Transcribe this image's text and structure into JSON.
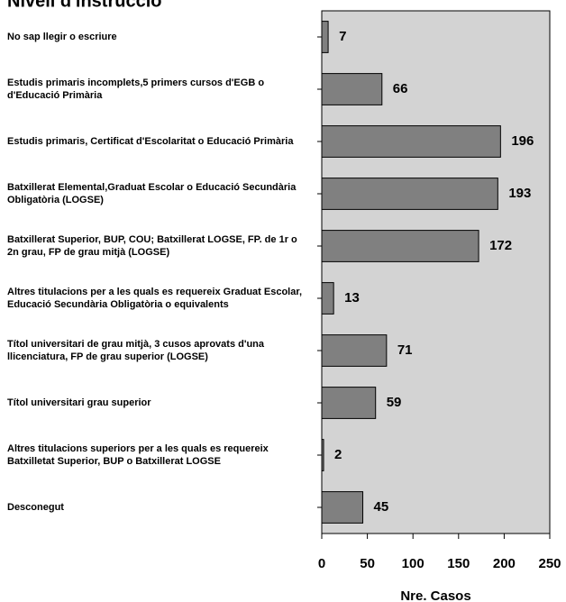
{
  "chart_data": {
    "type": "barh",
    "title": "Nivell d'instrucció",
    "categories": [
      "No sap llegir o escriure",
      "Estudis primaris incomplets,5 primers cursos d'EGB o d'Educació Primària",
      "Estudis primaris, Certificat d'Escolaritat o Educació Primària",
      "Batxillerat Elemental,Graduat Escolar o Educació Secundària Obligatòria (LOGSE)",
      "Batxillerat Superior, BUP, COU; Batxillerat LOGSE, FP. de 1r o 2n grau, FP de grau mitjà (LOGSE)",
      "Altres titulacions per a les quals es requereix Graduat Escolar, Educació Secundària Obligatòria o equivalents",
      "Títol universitari de grau mitjà, 3 cusos aprovats d'una llicenciatura,  FP de grau superior (LOGSE)",
      "Títol universitari grau superior",
      "Altres titulacions superiors per a les quals es requereix Batxilletat Superior, BUP o Batxillerat LOGSE",
      "Desconegut"
    ],
    "values": [
      7,
      66,
      196,
      193,
      172,
      13,
      71,
      59,
      2,
      45
    ],
    "color": "#808080",
    "background": "#d3d3d3",
    "xlabel": "Nre. Casos",
    "xlim": [
      0,
      250
    ],
    "xticks": [
      0,
      50,
      100,
      150,
      200,
      250
    ]
  }
}
